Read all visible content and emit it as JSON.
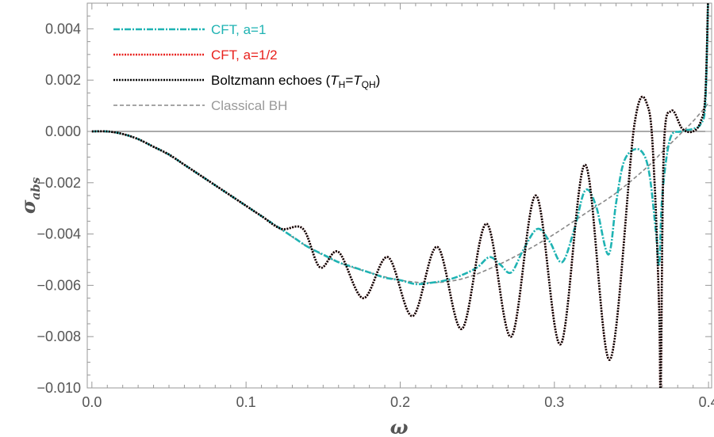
{
  "chart_data": {
    "type": "line",
    "title": "",
    "xlabel": "ω",
    "ylabel": "σ",
    "ylabel_subscript": "abs",
    "xlim": [
      -0.003,
      0.402
    ],
    "ylim": [
      -0.01,
      0.005
    ],
    "x_ticks": [
      0.0,
      0.1,
      0.2,
      0.3,
      0.4
    ],
    "x_tick_labels": [
      "0.0",
      "0.1",
      "0.2",
      "0.3",
      "0.4"
    ],
    "y_ticks": [
      0.004,
      0.002,
      0.0,
      -0.002,
      -0.004,
      -0.006,
      -0.008,
      -0.01
    ],
    "y_tick_labels": [
      "0.004",
      "0.002",
      "0.000",
      "−0.002",
      "−0.004",
      "−0.006",
      "−0.008",
      "−0.010"
    ],
    "grid": false,
    "zero_line": true,
    "legend_position": "top-left",
    "series": [
      {
        "name": "CFT, a=1",
        "color": "#1fb3b3",
        "style": "dash-dot",
        "x": [
          0.0,
          0.01,
          0.02,
          0.03,
          0.04,
          0.05,
          0.06,
          0.07,
          0.08,
          0.09,
          0.1,
          0.11,
          0.12,
          0.13,
          0.14,
          0.15,
          0.16,
          0.17,
          0.18,
          0.19,
          0.2,
          0.21,
          0.22,
          0.23,
          0.24,
          0.25,
          0.258,
          0.265,
          0.272,
          0.28,
          0.289,
          0.297,
          0.305,
          0.313,
          0.32,
          0.327,
          0.335,
          0.34,
          0.345,
          0.352,
          0.358,
          0.362,
          0.366,
          0.368,
          0.37,
          0.375,
          0.382,
          0.39,
          0.395,
          0.398,
          0.4
        ],
        "y": [
          0.0,
          0.0,
          -0.0001,
          -0.0003,
          -0.0006,
          -0.0009,
          -0.0013,
          -0.0017,
          -0.0021,
          -0.0025,
          -0.0029,
          -0.0033,
          -0.0037,
          -0.0041,
          -0.0045,
          -0.0048,
          -0.0051,
          -0.0053,
          -0.0055,
          -0.0057,
          -0.0058,
          -0.00595,
          -0.0059,
          -0.0058,
          -0.0056,
          -0.0053,
          -0.0049,
          -0.0052,
          -0.0055,
          -0.0046,
          -0.0038,
          -0.0043,
          -0.0051,
          -0.0038,
          -0.0023,
          -0.0029,
          -0.0048,
          -0.0028,
          -0.0012,
          -0.0007,
          -0.0009,
          -0.0018,
          -0.004,
          -0.0052,
          -0.0025,
          -0.0003,
          0.0,
          0.0001,
          0.0003,
          0.0012,
          0.006
        ]
      },
      {
        "name": "CFT, a=1/2",
        "color": "#e8201c",
        "style": "dotted",
        "x": [
          0.0,
          0.01,
          0.02,
          0.03,
          0.04,
          0.05,
          0.06,
          0.07,
          0.08,
          0.09,
          0.1,
          0.11,
          0.123,
          0.137,
          0.148,
          0.16,
          0.176,
          0.192,
          0.208,
          0.224,
          0.24,
          0.256,
          0.272,
          0.288,
          0.304,
          0.32,
          0.336,
          0.352,
          0.361,
          0.365,
          0.368,
          0.369,
          0.371,
          0.376,
          0.383,
          0.39,
          0.395,
          0.398,
          0.4
        ],
        "y": [
          0.0,
          0.0,
          -0.0001,
          -0.0003,
          -0.0006,
          -0.0009,
          -0.0013,
          -0.0017,
          -0.0021,
          -0.0025,
          -0.0029,
          -0.0033,
          -0.0038,
          -0.0038,
          -0.0053,
          -0.0047,
          -0.0065,
          -0.0049,
          -0.0072,
          -0.0045,
          -0.0077,
          -0.0036,
          -0.008,
          -0.0025,
          -0.0083,
          -0.0013,
          -0.0089,
          0.0003,
          0.0009,
          -0.002,
          -0.007,
          -0.01,
          -0.0007,
          0.0008,
          0.0001,
          0.0,
          0.0004,
          0.0015,
          0.006
        ]
      },
      {
        "name": "Boltzmann echoes (T_H=T_QH)",
        "color": "#000000",
        "style": "dotted",
        "x": [
          0.0,
          0.01,
          0.02,
          0.03,
          0.04,
          0.05,
          0.06,
          0.07,
          0.08,
          0.09,
          0.1,
          0.11,
          0.123,
          0.137,
          0.148,
          0.16,
          0.176,
          0.192,
          0.208,
          0.224,
          0.24,
          0.256,
          0.272,
          0.288,
          0.304,
          0.32,
          0.336,
          0.352,
          0.361,
          0.365,
          0.368,
          0.369,
          0.371,
          0.376,
          0.383,
          0.39,
          0.395,
          0.398,
          0.4
        ],
        "y": [
          0.0,
          0.0,
          -0.0001,
          -0.0003,
          -0.0006,
          -0.0009,
          -0.0013,
          -0.0017,
          -0.0021,
          -0.0025,
          -0.0029,
          -0.0033,
          -0.0038,
          -0.0038,
          -0.0053,
          -0.0047,
          -0.0065,
          -0.0049,
          -0.0072,
          -0.0045,
          -0.0077,
          -0.0036,
          -0.008,
          -0.0025,
          -0.0083,
          -0.0013,
          -0.0089,
          0.0003,
          0.0009,
          -0.002,
          -0.007,
          -0.01,
          -0.0007,
          0.0008,
          0.0001,
          0.0,
          0.0004,
          0.0015,
          0.006
        ]
      },
      {
        "name": "Classical BH",
        "color": "#888888",
        "style": "dashed",
        "x": [
          0.0,
          0.02,
          0.04,
          0.06,
          0.08,
          0.1,
          0.12,
          0.14,
          0.16,
          0.18,
          0.2,
          0.22,
          0.24,
          0.26,
          0.28,
          0.3,
          0.32,
          0.34,
          0.36,
          0.37,
          0.38,
          0.39,
          0.4
        ],
        "y": [
          0.0,
          -0.0001,
          -0.0006,
          -0.0013,
          -0.0021,
          -0.0029,
          -0.0037,
          -0.0045,
          -0.0051,
          -0.0055,
          -0.0058,
          -0.0059,
          -0.00575,
          -0.0053,
          -0.0047,
          -0.004,
          -0.0032,
          -0.0024,
          -0.0014,
          -0.0008,
          -0.0002,
          0.0004,
          0.0011
        ]
      }
    ],
    "legend": [
      {
        "label": "CFT, a=1",
        "color": "#1fb3b3",
        "style": "dash-dot"
      },
      {
        "label": "CFT, a=1/2",
        "color": "#e8201c",
        "style": "dotted"
      },
      {
        "label_parts": [
          "Boltzmann echoes (",
          "T",
          "H",
          "=",
          "T",
          "QH",
          ")"
        ],
        "color": "#000000",
        "style": "dotted"
      },
      {
        "label": "Classical BH",
        "color": "#888888",
        "style": "dashed"
      }
    ]
  }
}
